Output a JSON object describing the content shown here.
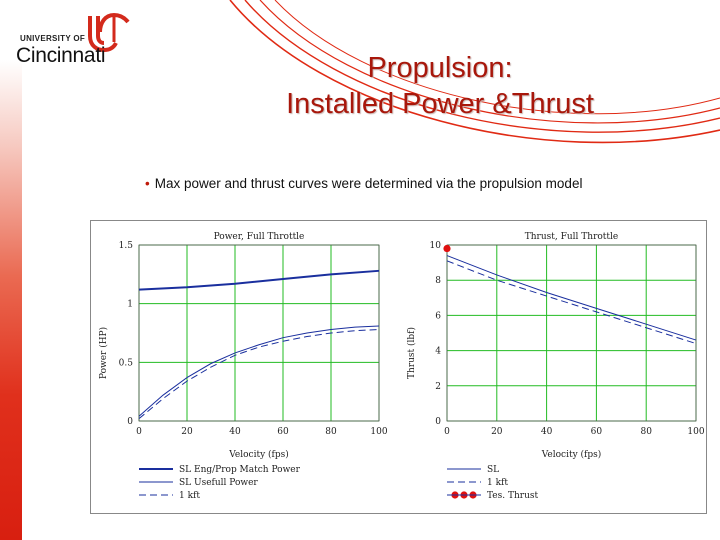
{
  "logo": {
    "top_text": "UNIVERSITY OF",
    "name": "Cincinnati"
  },
  "slide": {
    "title_line1": "Propulsion:",
    "title_line2": "Installed Power &Thrust",
    "bullet": "Max power and thrust curves were determined via the propulsion model"
  },
  "colors": {
    "title": "#a8170b",
    "accent": "#d81f10",
    "grid": "#22bb22",
    "line": "#1a2f9e"
  },
  "chart_data": [
    {
      "type": "line",
      "title": "Power, Full Throttle",
      "xlabel": "Velocity (fps)",
      "ylabel": "Power (HP)",
      "xlim": [
        0,
        100
      ],
      "ylim": [
        0,
        1.5
      ],
      "xticks": [
        "0",
        "20",
        "40",
        "60",
        "80",
        "100"
      ],
      "yticks": [
        "0",
        "0.5",
        "1",
        "1.5"
      ],
      "grid": true,
      "legend_position": "bottom",
      "series": [
        {
          "name": "SL Eng/Prop Match Power",
          "style": "thick",
          "x": [
            0,
            20,
            40,
            60,
            80,
            100
          ],
          "y": [
            1.12,
            1.14,
            1.17,
            1.21,
            1.25,
            1.28
          ]
        },
        {
          "name": "SL Usefull Power",
          "style": "solid",
          "x": [
            0,
            10,
            20,
            30,
            40,
            50,
            60,
            70,
            80,
            90,
            100
          ],
          "y": [
            0.04,
            0.22,
            0.37,
            0.49,
            0.58,
            0.65,
            0.71,
            0.75,
            0.78,
            0.8,
            0.81
          ]
        },
        {
          "name": "1 kft",
          "style": "dashed",
          "x": [
            0,
            10,
            20,
            30,
            40,
            50,
            60,
            70,
            80,
            90,
            100
          ],
          "y": [
            0.02,
            0.19,
            0.34,
            0.46,
            0.56,
            0.63,
            0.68,
            0.72,
            0.75,
            0.77,
            0.78
          ]
        }
      ]
    },
    {
      "type": "line",
      "title": "Thrust, Full Throttle",
      "xlabel": "Velocity (fps)",
      "ylabel": "Thrust (lbf)",
      "xlim": [
        0,
        100
      ],
      "ylim": [
        0,
        10
      ],
      "xticks": [
        "0",
        "20",
        "40",
        "60",
        "80",
        "100"
      ],
      "yticks": [
        "0",
        "2",
        "4",
        "6",
        "8",
        "10"
      ],
      "grid": true,
      "legend_position": "bottom",
      "series": [
        {
          "name": "SL",
          "style": "solid",
          "x": [
            0,
            20,
            40,
            60,
            80,
            100
          ],
          "y": [
            9.4,
            8.3,
            7.3,
            6.4,
            5.5,
            4.6
          ]
        },
        {
          "name": "1 kft",
          "style": "dashed",
          "x": [
            0,
            20,
            40,
            60,
            80,
            100
          ],
          "y": [
            9.1,
            8.0,
            7.1,
            6.2,
            5.3,
            4.4
          ]
        },
        {
          "name": "Tes. Thrust",
          "style": "marker",
          "x": [
            0
          ],
          "y": [
            9.8
          ]
        }
      ]
    }
  ]
}
